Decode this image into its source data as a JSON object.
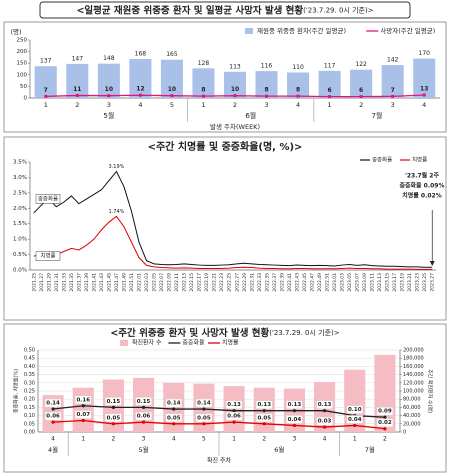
{
  "chart_data": [
    {
      "type": "combo",
      "title": "<일평균 재원중 위중증 환자 및 일평균 사망자 발생 현황",
      "title_note": "('23.7.29. 0시 기준)>",
      "y_label": "(명)",
      "x_label": "발생 주차(WEEK)",
      "categories": [
        "1",
        "2",
        "3",
        "4",
        "5",
        "1",
        "2",
        "3",
        "4",
        "1",
        "2",
        "3",
        "4"
      ],
      "x_groups": [
        "5월",
        "5월",
        "5월",
        "5월",
        "5월",
        "6월",
        "6월",
        "6월",
        "6월",
        "7월",
        "7월",
        "7월",
        "7월"
      ],
      "ylim": [
        0,
        250
      ],
      "yticks": [
        0,
        50,
        100,
        150,
        200,
        250
      ],
      "grid": false,
      "legend": "top-right",
      "series": [
        {
          "name": "재원중 위중증 환자(주간 일평균)",
          "type": "bar",
          "color": "#a9c1e8",
          "show_labels": true,
          "values": [
            137,
            147,
            148,
            168,
            165,
            128,
            113,
            116,
            110,
            117,
            122,
            142,
            170
          ]
        },
        {
          "name": "사망자(주간 일평균)",
          "type": "line",
          "color": "#e0157f",
          "show_labels": true,
          "values": [
            7,
            11,
            10,
            12,
            10,
            8,
            10,
            8,
            8,
            6,
            6,
            7,
            13
          ]
        }
      ]
    },
    {
      "type": "line",
      "title": "<주간 치명률 및 중증화율(명, %)>",
      "categories": [
        "2021.25",
        "2021.27",
        "2021.29",
        "2021.31",
        "2021.33",
        "2021.35",
        "2021.37",
        "2021.39",
        "2021.41",
        "2021.43",
        "2021.45",
        "2021.47",
        "2021.49",
        "2021.51",
        "2022.01",
        "2022.03",
        "2022.05",
        "2022.07",
        "2022.09",
        "2022.11",
        "2022.13",
        "2022.15",
        "2022.17",
        "2022.19",
        "2022.21",
        "2022.23",
        "2022.25",
        "2022.27",
        "2022.29",
        "2022.31",
        "2022.33",
        "2022.35",
        "2022.37",
        "2022.39",
        "2022.41",
        "2022.43",
        "2022.45",
        "2022.47",
        "2022.49",
        "2022.51",
        "2023.01",
        "2023.03",
        "2023.05",
        "2023.07",
        "2023.09",
        "2023.11",
        "2023.13",
        "2023.15",
        "2023.17",
        "2023.19",
        "2023.21",
        "2023.23",
        "2023.25",
        "2023.27"
      ],
      "ylim": [
        0,
        3.5
      ],
      "yticks": [
        {
          "value": 0,
          "label": "0.0%"
        },
        {
          "value": 0.5,
          "label": "0.5%"
        },
        {
          "value": 1,
          "label": "1.0%"
        },
        {
          "value": 1.5,
          "label": "1.5%"
        },
        {
          "value": 2,
          "label": "2.0%"
        },
        {
          "value": 2.5,
          "label": "2.5%"
        },
        {
          "value": 3,
          "label": "3.0%"
        },
        {
          "value": 3.5,
          "label": "3.5%"
        }
      ],
      "grid": false,
      "legend": "top-right",
      "series": [
        {
          "name": "중증화율",
          "color": "#111111",
          "values": [
            1.85,
            2.1,
            2.3,
            2.05,
            2.2,
            2.4,
            2.15,
            2.3,
            2.45,
            2.6,
            2.9,
            3.19,
            2.7,
            1.9,
            0.9,
            0.3,
            0.2,
            0.18,
            0.17,
            0.18,
            0.2,
            0.18,
            0.16,
            0.15,
            0.15,
            0.16,
            0.17,
            0.2,
            0.22,
            0.2,
            0.18,
            0.17,
            0.16,
            0.15,
            0.14,
            0.16,
            0.15,
            0.14,
            0.15,
            0.14,
            0.13,
            0.16,
            0.18,
            0.15,
            0.17,
            0.14,
            0.13,
            0.12,
            0.12,
            0.11,
            0.1,
            0.1,
            0.09,
            0.09
          ]
        },
        {
          "name": "치명률",
          "color": "#e00000",
          "values": [
            0.45,
            0.5,
            0.55,
            0.5,
            0.6,
            0.7,
            0.65,
            0.8,
            1.0,
            1.3,
            1.55,
            1.74,
            1.4,
            0.9,
            0.4,
            0.15,
            0.1,
            0.08,
            0.07,
            0.06,
            0.07,
            0.06,
            0.05,
            0.05,
            0.05,
            0.05,
            0.06,
            0.08,
            0.09,
            0.08,
            0.06,
            0.05,
            0.05,
            0.04,
            0.04,
            0.05,
            0.05,
            0.04,
            0.04,
            0.04,
            0.04,
            0.05,
            0.06,
            0.05,
            0.05,
            0.04,
            0.04,
            0.03,
            0.03,
            0.03,
            0.03,
            0.02,
            0.02,
            0.02
          ]
        }
      ],
      "peak_labels": [
        "3.19%",
        "1.74%"
      ],
      "annotations": [
        "'23.7월 2주",
        "중증화율 0.09%",
        "치명률 0.02%"
      ]
    },
    {
      "type": "combo",
      "title": "<주간 위중증 환자 및 사망자 발생 현황",
      "title_note": "('23.7.29. 0시 기준)>",
      "y_label": "중증화율, 치명률(%)",
      "y2_label": "주간 확진환자 수(명)",
      "x_label": "확진 주차",
      "categories": [
        "4",
        "1",
        "2",
        "3",
        "4",
        "5",
        "1",
        "2",
        "3",
        "4",
        "1",
        "2"
      ],
      "x_groups": [
        "4월",
        "5월",
        "5월",
        "5월",
        "5월",
        "5월",
        "6월",
        "6월",
        "6월",
        "6월",
        "7월",
        "7월"
      ],
      "ylim": [
        0,
        0.5
      ],
      "yticks": [
        {
          "value": 0,
          "label": "0.00"
        },
        {
          "value": 0.05,
          "label": "0.05"
        },
        {
          "value": 0.1,
          "label": "0.10"
        },
        {
          "value": 0.15,
          "label": "0.15"
        },
        {
          "value": 0.2,
          "label": "0.20"
        },
        {
          "value": 0.25,
          "label": "0.25"
        },
        {
          "value": 0.3,
          "label": "0.30"
        },
        {
          "value": 0.35,
          "label": "0.35"
        },
        {
          "value": 0.4,
          "label": "0.40"
        },
        {
          "value": 0.45,
          "label": "0.45"
        },
        {
          "value": 0.5,
          "label": "0.50"
        }
      ],
      "y2lim": [
        0,
        200000
      ],
      "y2ticks": [
        0,
        {
          "value": 20000,
          "label": "20,000"
        },
        {
          "value": 40000,
          "label": "40,000"
        },
        {
          "value": 60000,
          "label": "60,000"
        },
        {
          "value": 80000,
          "label": "80,000"
        },
        {
          "value": 100000,
          "label": "100,000"
        },
        {
          "value": 120000,
          "label": "120,000"
        },
        {
          "value": 140000,
          "label": "140,000"
        },
        {
          "value": 160000,
          "label": "160,000"
        },
        {
          "value": 180000,
          "label": "180,000"
        },
        {
          "value": 200000,
          "label": "200,000"
        }
      ],
      "grid": true,
      "legend": "top",
      "series": [
        {
          "name": "확진환자 수",
          "type": "bar",
          "axis": "y2",
          "color": "#f6bcc3",
          "show_labels": false,
          "values": [
            90000,
            108000,
            128000,
            132000,
            120000,
            118000,
            112000,
            108000,
            106000,
            122000,
            152000,
            188000
          ]
        },
        {
          "name": "중증화율",
          "type": "line",
          "color": "#222222",
          "show_labels": true,
          "values": [
            0.14,
            0.16,
            0.15,
            0.15,
            0.14,
            0.14,
            0.13,
            0.13,
            0.13,
            0.13,
            0.1,
            0.09
          ],
          "value_labels": [
            "0.14",
            "0.16",
            "0.15",
            "0.15",
            "0.14",
            "0.14",
            "0.13",
            "0.13",
            "0.13",
            "0.13",
            "0.10",
            "0.09"
          ]
        },
        {
          "name": "치명률",
          "type": "line",
          "color": "#e00000",
          "show_labels": true,
          "values": [
            0.06,
            0.07,
            0.05,
            0.06,
            0.05,
            0.05,
            0.06,
            0.05,
            0.04,
            0.03,
            0.04,
            0.02
          ],
          "value_labels": [
            "0.06",
            "0.07",
            "0.05",
            "0.06",
            "0.05",
            "0.05",
            "0.06",
            "0.05",
            "0.04",
            "0.03",
            "0.04",
            "0.02"
          ]
        }
      ]
    }
  ]
}
